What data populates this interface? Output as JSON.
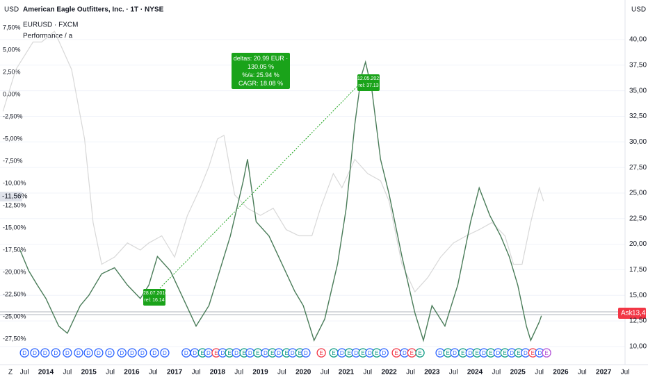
{
  "chart_data": {
    "type": "line",
    "title": "American Eagle Outfitters, Inc. · 1T · NYSE",
    "subtitle": "EURUSD · FXCM",
    "indicator": "Performance / a",
    "left_unit": "USD",
    "right_unit": "USD",
    "zoom_button": "Z",
    "left_marker": "-11,56%",
    "ask_label": "Ask",
    "ask_value": "13,45",
    "annotation_lines": [
      "deltas: 20.99 EUR · 130.05 %",
      "%/a: 25.94 %",
      "CAGR: 18.08 %"
    ],
    "point_a": [
      "28.07.2016",
      "rel: 16.14"
    ],
    "point_b": [
      "12.05.2021",
      "rel: 37.13"
    ],
    "xlim": [
      2012.93,
      2027.5
    ],
    "xticks": [
      {
        "value": 2013.5,
        "label": "Jul"
      },
      2014,
      {
        "value": 2014.5,
        "label": "Jul"
      },
      2015,
      {
        "value": 2015.5,
        "label": "Jul"
      },
      2016,
      {
        "value": 2016.5,
        "label": "Jul"
      },
      2017,
      {
        "value": 2017.5,
        "label": "Jul"
      },
      2018,
      {
        "value": 2018.5,
        "label": "Jul"
      },
      2019,
      {
        "value": 2019.5,
        "label": "Jul"
      },
      2020,
      {
        "value": 2020.5,
        "label": "Jul"
      },
      2021,
      {
        "value": 2021.5,
        "label": "Jul"
      },
      2022,
      {
        "value": 2022.5,
        "label": "Jul"
      },
      2023,
      {
        "value": 2023.5,
        "label": "Jul"
      },
      2024,
      {
        "value": 2024.5,
        "label": "Jul"
      },
      2025,
      {
        "value": 2025.5,
        "label": "Jul"
      },
      2026,
      {
        "value": 2026.5,
        "label": "Jul"
      },
      2027,
      {
        "value": 2027.5,
        "label": "Jul"
      }
    ],
    "ylim": [
      -30.0,
      8.28
    ],
    "yticks": [
      {
        "value": 7.5,
        "label": "7,50%"
      },
      {
        "value": 5,
        "label": "5,00%"
      },
      {
        "value": 2.5,
        "label": "2,50%"
      },
      {
        "value": 0,
        "label": "0,00%"
      },
      {
        "value": -2.5,
        "label": "-2,50%"
      },
      {
        "value": -5,
        "label": "-5,00%"
      },
      {
        "value": -7.5,
        "label": "-7,50%"
      },
      {
        "value": -10,
        "label": "-10,00%"
      },
      {
        "value": -12.5,
        "label": "-12,50%"
      },
      {
        "value": -15,
        "label": "-15,00%"
      },
      {
        "value": -17.5,
        "label": "-17,50%"
      },
      {
        "value": -20,
        "label": "-20,00%"
      },
      {
        "value": -22.5,
        "label": "-22,50%"
      },
      {
        "value": -25,
        "label": "-25,00%"
      },
      {
        "value": -27.5,
        "label": "-27,50%"
      }
    ],
    "y2lim": [
      8.57,
      41.83
    ],
    "y2ticks": [
      {
        "value": 40,
        "label": "40,00"
      },
      {
        "value": 37.5,
        "label": "37,50"
      },
      {
        "value": 35,
        "label": "35,00"
      },
      {
        "value": 32.5,
        "label": "32,50"
      },
      {
        "value": 30,
        "label": "30,00"
      },
      {
        "value": 27.5,
        "label": "27,50"
      },
      {
        "value": 25,
        "label": "25,00"
      },
      {
        "value": 22.5,
        "label": "22,50"
      },
      {
        "value": 20,
        "label": "20,00"
      },
      {
        "value": 17.5,
        "label": "17,50"
      },
      {
        "value": 15,
        "label": "15,00"
      },
      {
        "value": 12.5,
        "label": "12,50"
      },
      {
        "value": 10,
        "label": "10,00"
      }
    ],
    "grid": true,
    "series": [
      {
        "color": "#d8d8d8",
        "x": [
          2013.0,
          2013.3,
          2013.7,
          2013.9,
          2014.2,
          2014.6,
          2014.9,
          2015.1,
          2015.3,
          2015.6,
          2015.9,
          2016.2,
          2016.4,
          2016.7,
          2017.0,
          2017.3,
          2017.6,
          2017.8,
          2018.0,
          2018.15,
          2018.4,
          2018.7,
          2019.0,
          2019.3,
          2019.6,
          2019.9,
          2020.2,
          2020.4,
          2020.7,
          2020.9,
          2021.2,
          2021.5,
          2021.8,
          2022.0,
          2022.3,
          2022.6,
          2022.9,
          2023.2,
          2023.5,
          2023.8,
          2024.1,
          2024.4,
          2024.7,
          2024.9,
          2025.1,
          2025.3,
          2025.5,
          2025.6
        ],
        "values": [
          -1.9,
          2.8,
          5.9,
          5.9,
          7.1,
          2.8,
          -5.0,
          -14.4,
          -19.1,
          -18.3,
          -16.7,
          -17.5,
          -16.7,
          -15.9,
          -18.3,
          -13.6,
          -10.5,
          -8.1,
          -5.0,
          -4.6,
          -11.3,
          -12.8,
          -13.6,
          -12.8,
          -15.2,
          -15.9,
          -15.9,
          -12.8,
          -8.9,
          -10.5,
          -7.3,
          -8.9,
          -9.7,
          -12.0,
          -19.1,
          -22.2,
          -20.6,
          -18.3,
          -16.7,
          -15.9,
          -15.2,
          -14.4,
          -15.9,
          -19.1,
          -19.1,
          -14.4,
          -10.5,
          -12.0
        ]
      },
      {
        "color": "#4a7c59",
        "axis": "y2",
        "x": [
          2013.4,
          2013.6,
          2013.8,
          2014.0,
          2014.3,
          2014.5,
          2014.8,
          2015.0,
          2015.3,
          2015.6,
          2015.9,
          2016.2,
          2016.4,
          2016.6,
          2016.9,
          2017.2,
          2017.5,
          2017.8,
          2018.0,
          2018.3,
          2018.6,
          2018.7,
          2018.9,
          2019.2,
          2019.5,
          2019.8,
          2020.0,
          2020.25,
          2020.5,
          2020.8,
          2021.0,
          2021.2,
          2021.35,
          2021.45,
          2021.6,
          2021.8,
          2022.0,
          2022.3,
          2022.6,
          2022.8,
          2023.0,
          2023.3,
          2023.6,
          2023.9,
          2024.1,
          2024.35,
          2024.6,
          2024.8,
          2025.0,
          2025.2,
          2025.3,
          2025.5,
          2025.55
        ],
        "values": [
          19.4,
          17.4,
          16.0,
          14.7,
          12.0,
          11.3,
          14.0,
          15.0,
          17.1,
          17.7,
          16.0,
          14.7,
          16.0,
          18.8,
          17.4,
          14.7,
          12.0,
          14.0,
          16.7,
          20.8,
          26.2,
          28.3,
          22.2,
          20.8,
          18.1,
          15.4,
          14.0,
          10.6,
          12.7,
          18.1,
          23.5,
          31.7,
          36.4,
          37.8,
          35.0,
          28.3,
          24.9,
          18.8,
          13.3,
          10.6,
          14.0,
          12.0,
          16.0,
          22.2,
          25.5,
          22.8,
          20.8,
          18.8,
          16.0,
          12.0,
          10.6,
          12.4,
          13.0
        ]
      }
    ],
    "events": [
      {
        "x": 2013.5,
        "label": "D",
        "color": "#2962ff"
      },
      {
        "x": 2013.74,
        "label": "D",
        "color": "#2962ff"
      },
      {
        "x": 2013.98,
        "label": "D",
        "color": "#2962ff"
      },
      {
        "x": 2014.23,
        "label": "D",
        "color": "#2962ff"
      },
      {
        "x": 2014.5,
        "label": "D",
        "color": "#2962ff"
      },
      {
        "x": 2014.76,
        "label": "D",
        "color": "#2962ff"
      },
      {
        "x": 2014.99,
        "label": "D",
        "color": "#2962ff"
      },
      {
        "x": 2015.23,
        "label": "D",
        "color": "#2962ff"
      },
      {
        "x": 2015.49,
        "label": "D",
        "color": "#2962ff"
      },
      {
        "x": 2015.77,
        "label": "D",
        "color": "#2962ff"
      },
      {
        "x": 2016.01,
        "label": "D",
        "color": "#2962ff"
      },
      {
        "x": 2016.25,
        "label": "D",
        "color": "#2962ff"
      },
      {
        "x": 2016.53,
        "label": "D",
        "color": "#2962ff"
      },
      {
        "x": 2016.77,
        "label": "D",
        "color": "#2962ff"
      },
      {
        "x": 2017.27,
        "label": "D",
        "color": "#2962ff"
      },
      {
        "x": 2017.47,
        "label": "D",
        "color": "#2962ff"
      },
      {
        "x": 2017.65,
        "label": "E",
        "color": "#089981"
      },
      {
        "x": 2017.79,
        "label": "D",
        "color": "#2962ff"
      },
      {
        "x": 2017.97,
        "label": "E",
        "color": "#f23645"
      },
      {
        "x": 2018.12,
        "label": "D",
        "color": "#2962ff"
      },
      {
        "x": 2018.28,
        "label": "E",
        "color": "#089981"
      },
      {
        "x": 2018.44,
        "label": "D",
        "color": "#2962ff"
      },
      {
        "x": 2018.62,
        "label": "E",
        "color": "#089981"
      },
      {
        "x": 2018.76,
        "label": "D",
        "color": "#2962ff"
      },
      {
        "x": 2018.94,
        "label": "E",
        "color": "#089981"
      },
      {
        "x": 2019.12,
        "label": "D",
        "color": "#2962ff"
      },
      {
        "x": 2019.28,
        "label": "E",
        "color": "#089981"
      },
      {
        "x": 2019.43,
        "label": "D",
        "color": "#2962ff"
      },
      {
        "x": 2019.61,
        "label": "E",
        "color": "#089981"
      },
      {
        "x": 2019.75,
        "label": "D",
        "color": "#2962ff"
      },
      {
        "x": 2019.92,
        "label": "E",
        "color": "#089981"
      },
      {
        "x": 2020.06,
        "label": "D",
        "color": "#2962ff"
      },
      {
        "x": 2020.42,
        "label": "E",
        "color": "#f23645"
      },
      {
        "x": 2020.71,
        "label": "E",
        "color": "#089981"
      },
      {
        "x": 2020.9,
        "label": "D",
        "color": "#2962ff"
      },
      {
        "x": 2021.07,
        "label": "E",
        "color": "#089981"
      },
      {
        "x": 2021.23,
        "label": "D",
        "color": "#2962ff"
      },
      {
        "x": 2021.39,
        "label": "E",
        "color": "#089981"
      },
      {
        "x": 2021.55,
        "label": "D",
        "color": "#2962ff"
      },
      {
        "x": 2021.71,
        "label": "E",
        "color": "#089981"
      },
      {
        "x": 2021.88,
        "label": "D",
        "color": "#2962ff"
      },
      {
        "x": 2022.17,
        "label": "E",
        "color": "#f23645"
      },
      {
        "x": 2022.36,
        "label": "D",
        "color": "#2962ff"
      },
      {
        "x": 2022.53,
        "label": "E",
        "color": "#f23645"
      },
      {
        "x": 2022.72,
        "label": "E",
        "color": "#089981"
      },
      {
        "x": 2023.19,
        "label": "D",
        "color": "#2962ff"
      },
      {
        "x": 2023.37,
        "label": "E",
        "color": "#089981"
      },
      {
        "x": 2023.53,
        "label": "D",
        "color": "#2962ff"
      },
      {
        "x": 2023.72,
        "label": "E",
        "color": "#089981"
      },
      {
        "x": 2023.89,
        "label": "D",
        "color": "#2962ff"
      },
      {
        "x": 2024.05,
        "label": "E",
        "color": "#089981"
      },
      {
        "x": 2024.21,
        "label": "D",
        "color": "#2962ff"
      },
      {
        "x": 2024.37,
        "label": "E",
        "color": "#089981"
      },
      {
        "x": 2024.54,
        "label": "D",
        "color": "#2962ff"
      },
      {
        "x": 2024.7,
        "label": "E",
        "color": "#089981"
      },
      {
        "x": 2024.86,
        "label": "D",
        "color": "#2962ff"
      },
      {
        "x": 2025.02,
        "label": "E",
        "color": "#089981"
      },
      {
        "x": 2025.18,
        "label": "D",
        "color": "#2962ff"
      },
      {
        "x": 2025.35,
        "label": "E",
        "color": "#f23645"
      },
      {
        "x": 2025.51,
        "label": "D",
        "color": "#2962ff"
      },
      {
        "x": 2025.67,
        "label": "E",
        "color": "#b14fd6"
      }
    ]
  }
}
